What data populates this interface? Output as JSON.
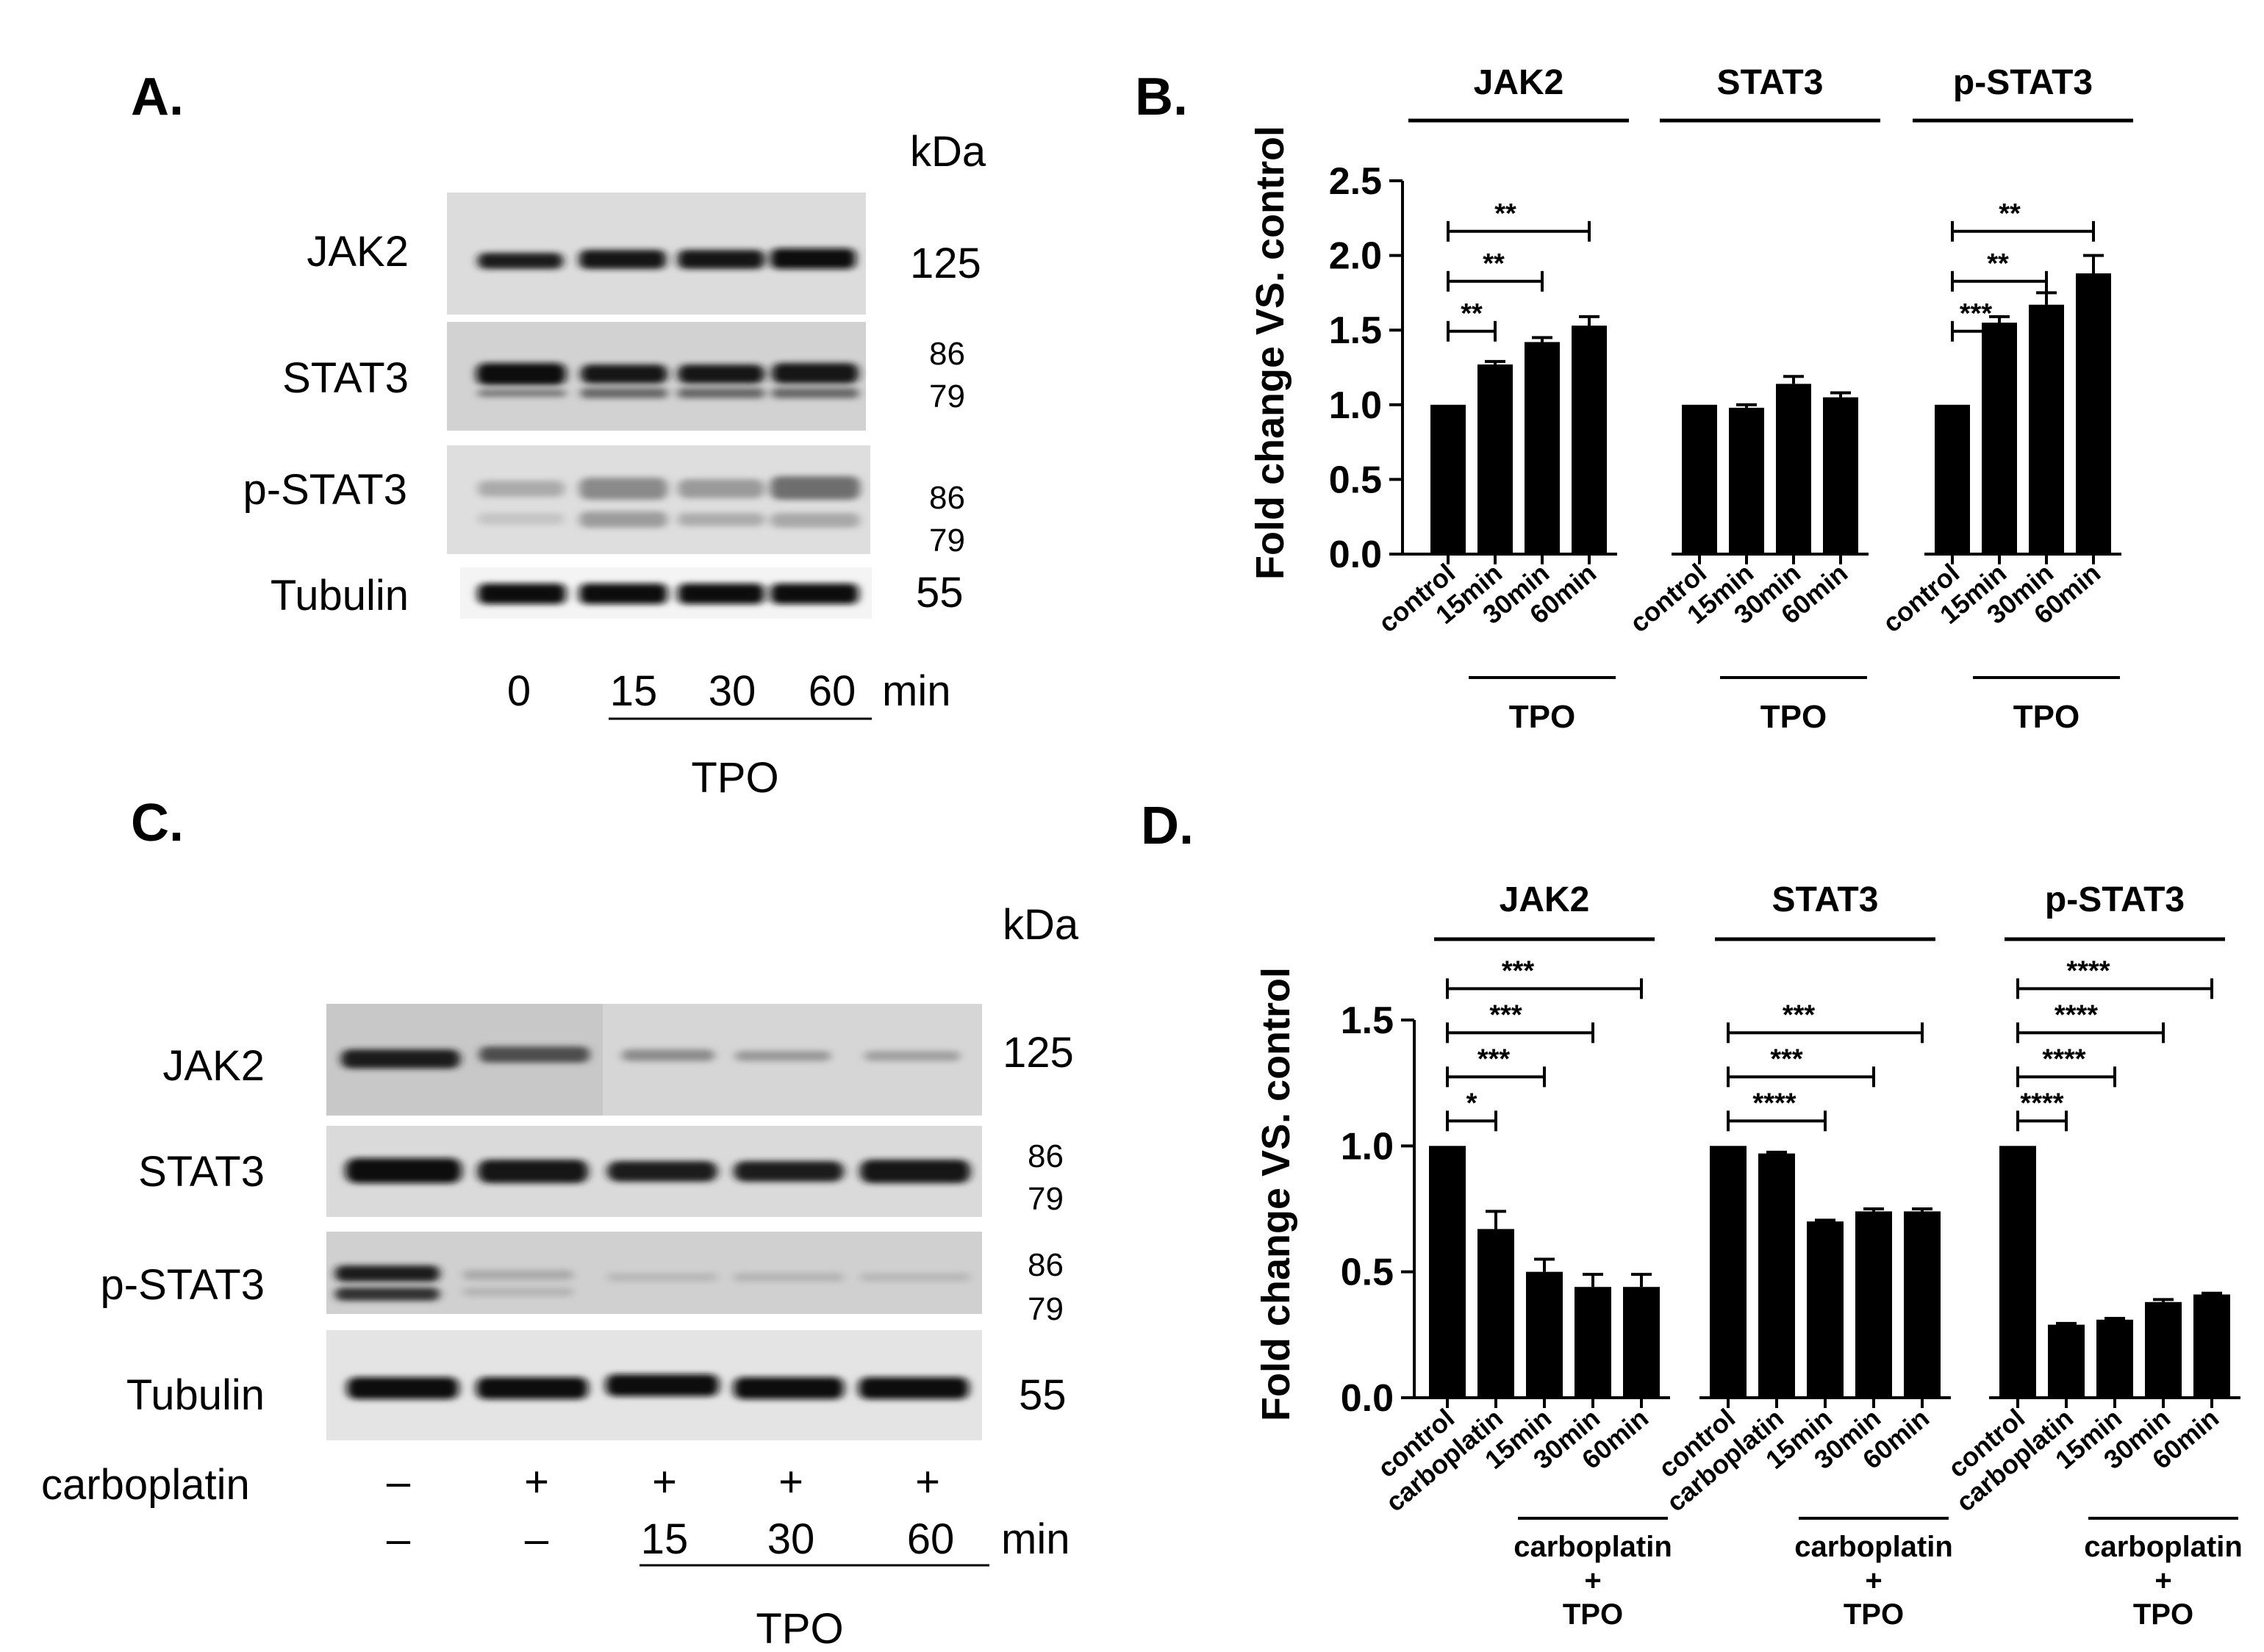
{
  "panels": {
    "A": {
      "letter": "A.",
      "kda_header": "kDa",
      "rows": [
        {
          "protein": "JAK2",
          "kda": [
            "125"
          ]
        },
        {
          "protein": "STAT3",
          "kda": [
            "86",
            "79"
          ]
        },
        {
          "protein": "p-STAT3",
          "kda": [
            "86",
            "79"
          ]
        },
        {
          "protein": "Tubulin",
          "kda": [
            "55"
          ]
        }
      ],
      "time_values": [
        "0",
        "15",
        "30",
        "60"
      ],
      "time_unit": "min",
      "treatment": "TPO"
    },
    "C": {
      "letter": "C.",
      "kda_header": "kDa",
      "rows": [
        {
          "protein": "JAK2",
          "kda": [
            "125"
          ]
        },
        {
          "protein": "STAT3",
          "kda": [
            "86",
            "79"
          ]
        },
        {
          "protein": "p-STAT3",
          "kda": [
            "86",
            "79"
          ]
        },
        {
          "protein": "Tubulin",
          "kda": [
            "55"
          ]
        }
      ],
      "carboplatin_label": "carboplatin",
      "carboplatin_values": [
        "–",
        "+",
        "+",
        "+",
        "+"
      ],
      "time_values": [
        "–",
        "–",
        "15",
        "30",
        "60"
      ],
      "time_unit": "min",
      "treatment": "TPO"
    },
    "B": {
      "letter": "B."
    },
    "D": {
      "letter": "D."
    }
  },
  "chart_data": [
    {
      "panel": "B",
      "type": "bar",
      "ylabel": "Fold change VS. control",
      "ylim": [
        0,
        2.5
      ],
      "yticks": [
        "0.0",
        "0.5",
        "1.0",
        "1.5",
        "2.0",
        "2.5"
      ],
      "group_bracket_label": "TPO",
      "groups": [
        {
          "name": "JAK2",
          "categories": [
            "control",
            "15min",
            "30min",
            "60min"
          ],
          "values": [
            1.0,
            1.27,
            1.42,
            1.53
          ],
          "errors": [
            0,
            0.02,
            0.03,
            0.06
          ],
          "sig": [
            {
              "from": 0,
              "to": 1,
              "label": "**"
            },
            {
              "from": 0,
              "to": 2,
              "label": "**"
            },
            {
              "from": 0,
              "to": 3,
              "label": "**"
            }
          ]
        },
        {
          "name": "STAT3",
          "categories": [
            "control",
            "15min",
            "30min",
            "60min"
          ],
          "values": [
            1.0,
            0.98,
            1.14,
            1.05
          ],
          "errors": [
            0,
            0.02,
            0.05,
            0.03
          ],
          "sig": []
        },
        {
          "name": "p-STAT3",
          "categories": [
            "control",
            "15min",
            "30min",
            "60min"
          ],
          "values": [
            1.0,
            1.55,
            1.67,
            1.88
          ],
          "errors": [
            0,
            0.04,
            0.08,
            0.12
          ],
          "sig": [
            {
              "from": 0,
              "to": 1,
              "label": "***"
            },
            {
              "from": 0,
              "to": 2,
              "label": "**"
            },
            {
              "from": 0,
              "to": 3,
              "label": "**"
            }
          ]
        }
      ]
    },
    {
      "panel": "D",
      "type": "bar",
      "ylabel": "Fold change VS. control",
      "ylim": [
        0,
        1.5
      ],
      "yticks": [
        "0.0",
        "0.5",
        "1.0",
        "1.5"
      ],
      "group_bracket_label": [
        "carboplatin",
        "+",
        "TPO"
      ],
      "groups": [
        {
          "name": "JAK2",
          "categories": [
            "control",
            "carboplatin",
            "15min",
            "30min",
            "60min"
          ],
          "values": [
            1.0,
            0.67,
            0.5,
            0.44,
            0.44
          ],
          "errors": [
            0,
            0.07,
            0.05,
            0.05,
            0.05
          ],
          "sig": [
            {
              "from": 0,
              "to": 1,
              "label": "*"
            },
            {
              "from": 0,
              "to": 2,
              "label": "***"
            },
            {
              "from": 0,
              "to": 3,
              "label": "***"
            },
            {
              "from": 0,
              "to": 4,
              "label": "***"
            }
          ]
        },
        {
          "name": "STAT3",
          "categories": [
            "control",
            "carboplatin",
            "15min",
            "30min",
            "60min"
          ],
          "values": [
            1.0,
            0.97,
            0.7,
            0.74,
            0.74
          ],
          "errors": [
            0,
            0.005,
            0.005,
            0.01,
            0.01
          ],
          "sig": [
            {
              "from": 0,
              "to": 2,
              "label": "****"
            },
            {
              "from": 0,
              "to": 3,
              "label": "***"
            },
            {
              "from": 0,
              "to": 4,
              "label": "***"
            }
          ]
        },
        {
          "name": "p-STAT3",
          "categories": [
            "control",
            "carboplatin",
            "15min",
            "30min",
            "60min"
          ],
          "values": [
            1.0,
            0.29,
            0.31,
            0.38,
            0.41
          ],
          "errors": [
            0,
            0.005,
            0.005,
            0.01,
            0.005
          ],
          "sig": [
            {
              "from": 0,
              "to": 1,
              "label": "****"
            },
            {
              "from": 0,
              "to": 2,
              "label": "****"
            },
            {
              "from": 0,
              "to": 3,
              "label": "****"
            },
            {
              "from": 0,
              "to": 4,
              "label": "****"
            }
          ]
        }
      ]
    }
  ]
}
